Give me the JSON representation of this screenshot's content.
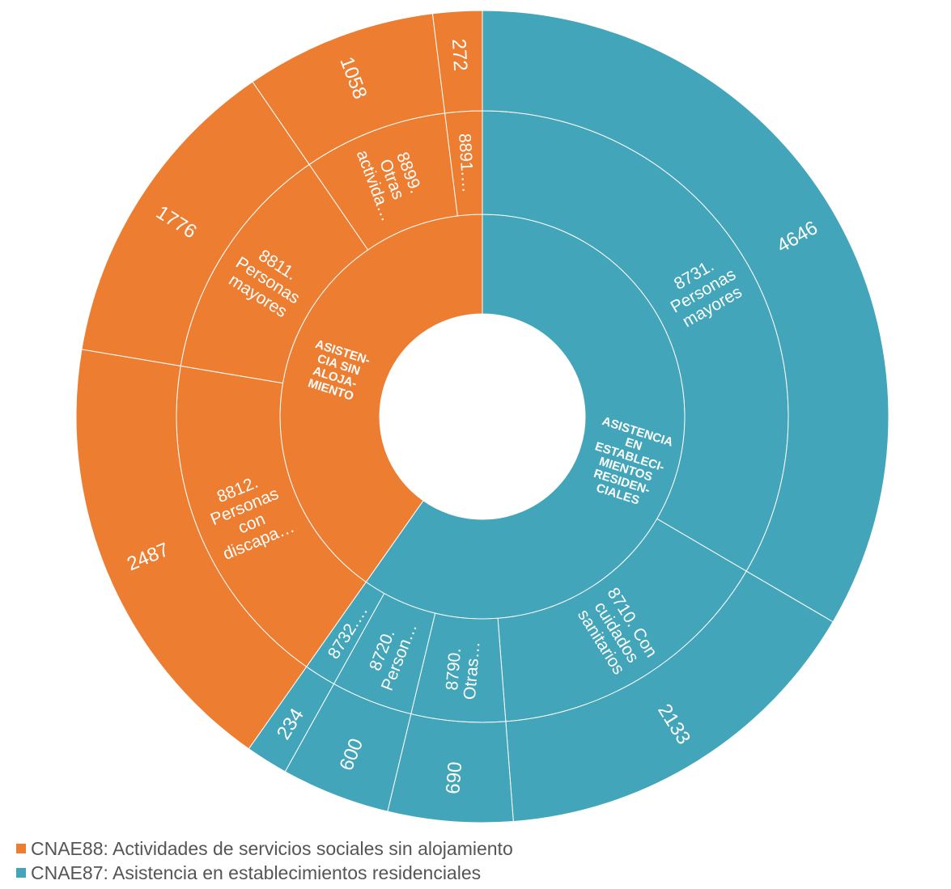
{
  "chart_data": {
    "type": "sunburst",
    "colors": {
      "orange": "#EC7D31",
      "teal": "#42A5B9"
    },
    "groups": [
      {
        "label": "ASISTENCIA EN ESTABLECI-MIENTOS RESIDEN-CIALES",
        "label_lines": [
          "ASISTENCIA",
          "EN",
          "ESTABLECI-",
          "MIENTOS",
          "RESIDEN-",
          "CIALES"
        ],
        "color": "#42A5B9",
        "children": [
          {
            "label": "8731. Personas mayores",
            "label_lines": [
              "8731.",
              "Personas",
              "mayores"
            ],
            "value": 4646
          },
          {
            "label": "8710. Con cuidados sanitarios",
            "label_lines": [
              "8710. Con",
              "cuidados",
              "sanitarios"
            ],
            "value": 2133
          },
          {
            "label": "8790. Otras…",
            "label_lines": [
              "8790.",
              "Otras…"
            ],
            "value": 690
          },
          {
            "label": "8720. Person…",
            "label_lines": [
              "8720.",
              "Person…"
            ],
            "value": 600
          },
          {
            "label": "8732.…",
            "label_lines": [
              "8732.…"
            ],
            "value": 234
          }
        ]
      },
      {
        "label": "ASISTEN-CIA SIN ALOJA-MIENTO",
        "label_lines": [
          "ASISTEN-",
          "CIA SIN",
          "ALOJA-",
          "MIENTO"
        ],
        "color": "#EC7D31",
        "children": [
          {
            "label": "8812. Personas con discapa…",
            "label_lines": [
              "8812.",
              "Personas",
              "con",
              "discapa…"
            ],
            "value": 2487
          },
          {
            "label": "8811. Personas mayores",
            "label_lines": [
              "8811.",
              "Personas",
              "mayores"
            ],
            "value": 1776
          },
          {
            "label": "8899. Otras activida…",
            "label_lines": [
              "8899.",
              "Otras",
              "activida…"
            ],
            "value": 1058
          },
          {
            "label": "8891.…",
            "label_lines": [
              "8891.…"
            ],
            "value": 272
          }
        ]
      }
    ],
    "legend": [
      {
        "label": "CNAE88: Actividades de servicios sociales sin alojamiento",
        "color": "#EC7D31"
      },
      {
        "label": "CNAE87: Asistencia en establecimientos residenciales",
        "color": "#42A5B9"
      }
    ]
  }
}
